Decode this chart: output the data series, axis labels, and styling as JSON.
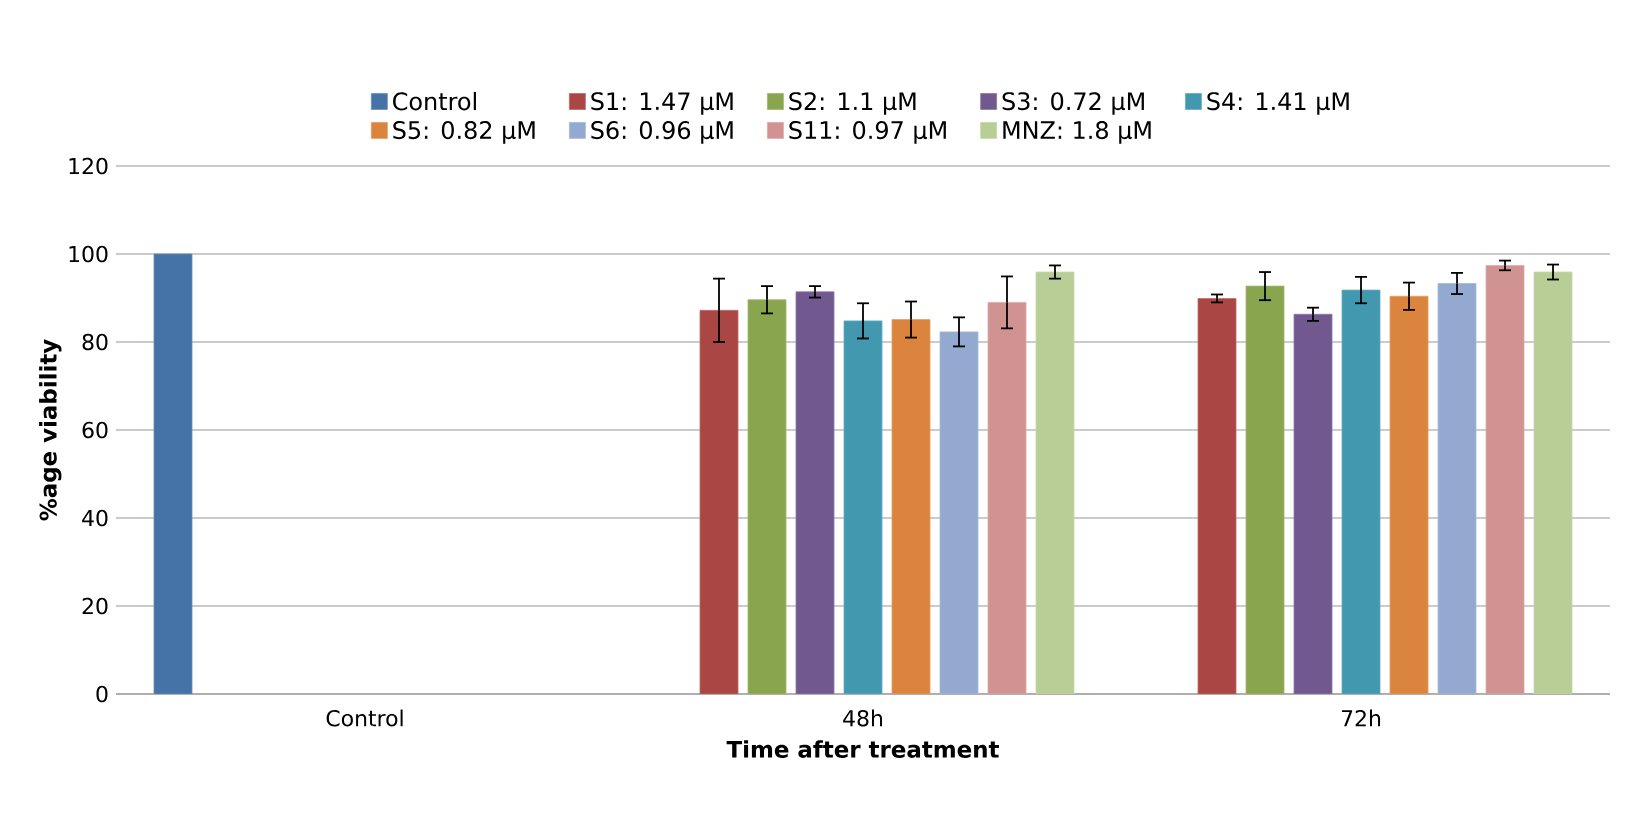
{
  "chart_data": {
    "type": "bar",
    "xlabel": "Time after treatment",
    "ylabel": "%age viability",
    "categories": [
      "Control",
      "48h",
      "72h"
    ],
    "ylim": [
      0,
      120
    ],
    "yticks": [
      0,
      20,
      40,
      60,
      80,
      100,
      120
    ],
    "grid": "y",
    "legend": "top",
    "series": [
      {
        "name": "Control",
        "color": "#4572a7",
        "values": [
          100,
          null,
          null
        ]
      },
      {
        "name": "S1: 1.47 μM",
        "color": "#aa4643",
        "values": [
          null,
          87.2,
          89.9
        ],
        "errors": [
          null,
          7.2,
          0.9
        ]
      },
      {
        "name": "S2: 1.1 μM",
        "color": "#89a54e",
        "values": [
          null,
          89.6,
          92.7
        ],
        "errors": [
          null,
          3.1,
          3.2
        ]
      },
      {
        "name": "S3: 0.72 μM",
        "color": "#71588f",
        "values": [
          null,
          91.4,
          86.3
        ],
        "errors": [
          null,
          1.3,
          1.5
        ]
      },
      {
        "name": "S4: 1.41 μM",
        "color": "#4198af",
        "values": [
          null,
          84.8,
          91.8
        ],
        "errors": [
          null,
          4.0,
          3.0
        ]
      },
      {
        "name": "S5: 0.82 μM",
        "color": "#db843d",
        "values": [
          null,
          85.1,
          90.4
        ],
        "errors": [
          null,
          4.1,
          3.1
        ]
      },
      {
        "name": "S6: 0.96 μM",
        "color": "#93a9cf",
        "values": [
          null,
          82.3,
          93.3
        ],
        "errors": [
          null,
          3.3,
          2.4
        ]
      },
      {
        "name": "S11: 0.97 μM",
        "color": "#d19392",
        "values": [
          null,
          89.0,
          97.4
        ],
        "errors": [
          null,
          5.9,
          1.1
        ]
      },
      {
        "name": "MNZ: 1.8 μM",
        "color": "#b9cd96",
        "values": [
          null,
          95.9,
          95.9
        ],
        "errors": [
          null,
          1.5,
          1.7
        ]
      }
    ]
  }
}
